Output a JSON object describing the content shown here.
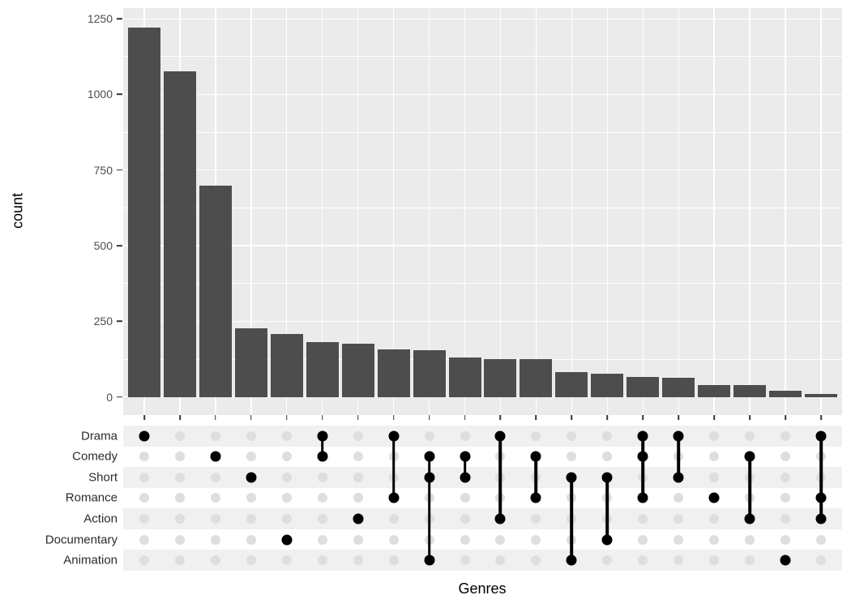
{
  "colors": {
    "panel_bg": "#EBEBEB",
    "grid_major": "#FFFFFF",
    "grid_minor": "#FFFFFF",
    "bar_fill": "#4D4D4D",
    "tick_mark": "#333333",
    "axis_tick_text": "#4D4D4D",
    "axis_title_text": "#000000",
    "matrix_dot_empty": "#DEDEDE",
    "matrix_dot_filled": "#000000",
    "matrix_stripe": "#F0F0F0",
    "matrix_row_plain": "#FFFFFF"
  },
  "chart_data": {
    "type": "bar",
    "variant": "upset-plot",
    "title": "",
    "xlabel": "Genres",
    "ylabel": "count",
    "ylim": [
      0,
      1287
    ],
    "yticks": [
      0,
      250,
      500,
      750,
      1000,
      1250
    ],
    "grid": "major-and-minor-horizontal, major-vertical",
    "legend": "none",
    "sets": [
      "Drama",
      "Comedy",
      "Short",
      "Romance",
      "Action",
      "Documentary",
      "Animation"
    ],
    "intersections": [
      {
        "members": [
          "Drama"
        ],
        "count": 1220
      },
      {
        "members": [],
        "count": 1077
      },
      {
        "members": [
          "Comedy"
        ],
        "count": 698
      },
      {
        "members": [
          "Short"
        ],
        "count": 228
      },
      {
        "members": [
          "Documentary"
        ],
        "count": 208
      },
      {
        "members": [
          "Drama",
          "Comedy"
        ],
        "count": 180
      },
      {
        "members": [
          "Action"
        ],
        "count": 176
      },
      {
        "members": [
          "Drama",
          "Romance"
        ],
        "count": 157
      },
      {
        "members": [
          "Comedy",
          "Short",
          "Animation"
        ],
        "count": 154
      },
      {
        "members": [
          "Comedy",
          "Short"
        ],
        "count": 129
      },
      {
        "members": [
          "Drama",
          "Action"
        ],
        "count": 126
      },
      {
        "members": [
          "Comedy",
          "Romance"
        ],
        "count": 124
      },
      {
        "members": [
          "Short",
          "Animation"
        ],
        "count": 82
      },
      {
        "members": [
          "Short",
          "Documentary"
        ],
        "count": 77
      },
      {
        "members": [
          "Drama",
          "Comedy",
          "Romance"
        ],
        "count": 66
      },
      {
        "members": [
          "Drama",
          "Short"
        ],
        "count": 62
      },
      {
        "members": [
          "Romance"
        ],
        "count": 40
      },
      {
        "members": [
          "Comedy",
          "Action"
        ],
        "count": 38
      },
      {
        "members": [
          "Animation"
        ],
        "count": 20
      },
      {
        "members": [
          "Drama",
          "Romance",
          "Action"
        ],
        "count": 9
      }
    ]
  }
}
